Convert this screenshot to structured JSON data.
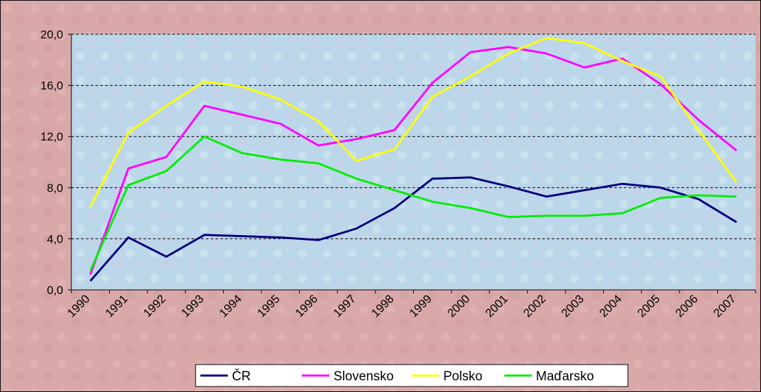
{
  "chart_data": {
    "type": "line",
    "categories": [
      "1990",
      "1991",
      "1992",
      "1993",
      "1994",
      "1995",
      "1996",
      "1997",
      "1998",
      "1999",
      "2000",
      "2001",
      "2002",
      "2003",
      "2004",
      "2005",
      "2006",
      "2007"
    ],
    "series": [
      {
        "name": "ČR",
        "color": "#000080",
        "values": [
          0.7,
          4.1,
          2.6,
          4.3,
          4.2,
          4.1,
          3.9,
          4.8,
          6.4,
          8.7,
          8.8,
          8.1,
          7.3,
          7.8,
          8.3,
          8.0,
          7.1,
          5.3
        ]
      },
      {
        "name": "Slovensko",
        "color": "#ff00ff",
        "values": [
          1.2,
          9.5,
          10.4,
          14.4,
          13.7,
          13.0,
          11.3,
          11.8,
          12.5,
          16.2,
          18.6,
          19.0,
          18.5,
          17.4,
          18.1,
          16.1,
          13.3,
          10.9
        ]
      },
      {
        "name": "Polsko",
        "color": "#ffff00",
        "values": [
          6.5,
          12.3,
          14.4,
          16.3,
          15.9,
          14.9,
          13.2,
          10.1,
          11.0,
          15.1,
          16.7,
          18.5,
          19.7,
          19.3,
          17.9,
          16.7,
          12.5,
          8.4
        ]
      },
      {
        "name": "Maďarsko",
        "color": "#00ee00",
        "values": [
          1.5,
          8.2,
          9.3,
          12.0,
          10.7,
          10.2,
          9.9,
          8.7,
          7.8,
          6.9,
          6.4,
          5.7,
          5.8,
          5.8,
          6.0,
          7.2,
          7.4,
          7.3
        ]
      }
    ],
    "ylim": [
      0,
      20
    ],
    "yticks": [
      {
        "value": 0,
        "label": "0,0"
      },
      {
        "value": 4,
        "label": "4,0"
      },
      {
        "value": 8,
        "label": "8,0"
      },
      {
        "value": 12,
        "label": "12,0"
      },
      {
        "value": 16,
        "label": "16,0"
      },
      {
        "value": 20,
        "label": "20,0"
      }
    ],
    "grid": true,
    "legend": "bottom"
  }
}
